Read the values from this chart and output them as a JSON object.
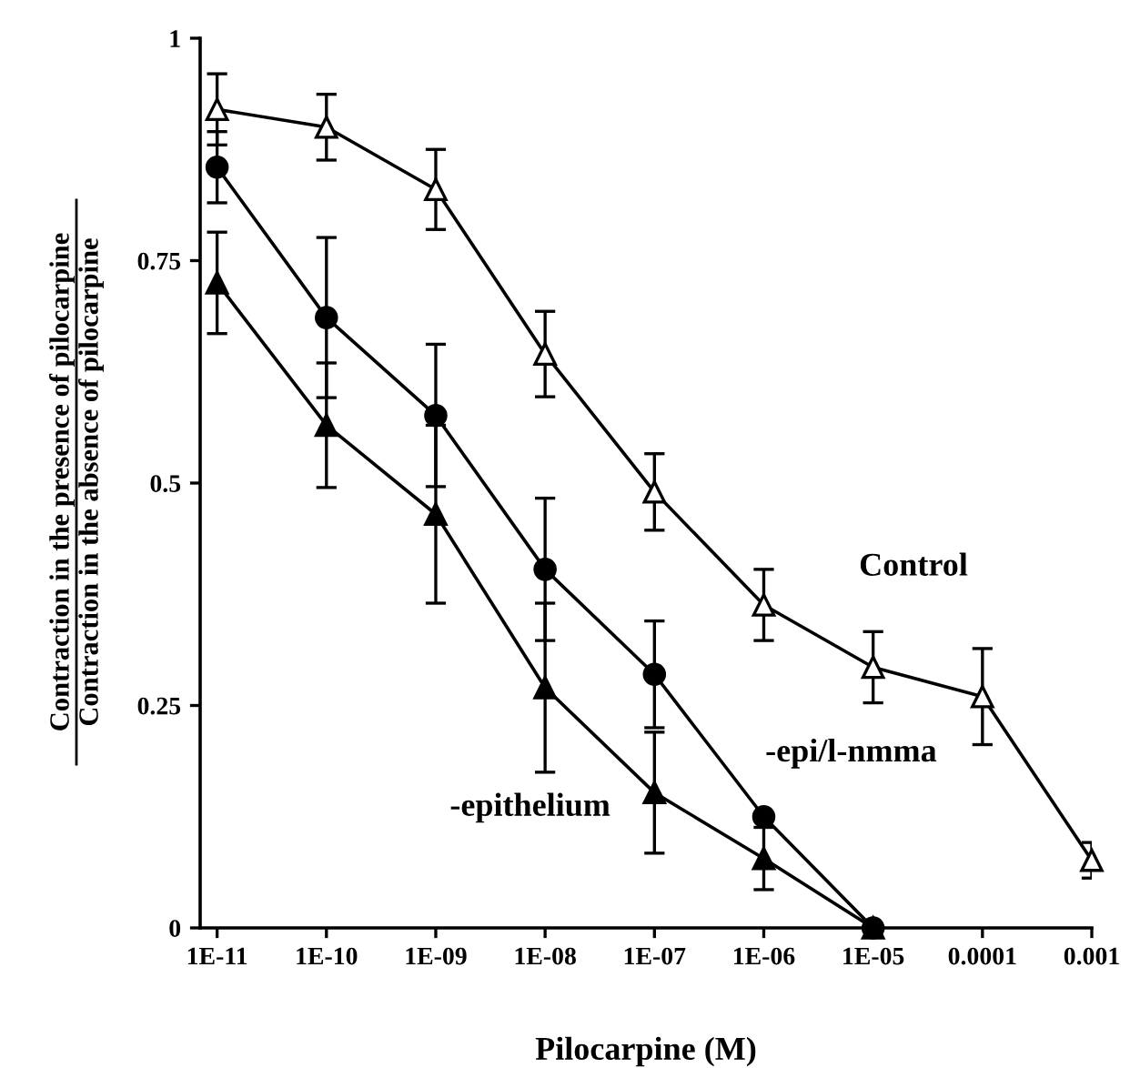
{
  "chart_data": {
    "type": "line",
    "xlabel": "Pilocarpine (M)",
    "ylabel": "Contraction in the presence of pilocarpine\nContraction in the absence of pilocarpine",
    "x": [
      1e-11,
      1e-10,
      1e-09,
      1e-08,
      1e-07,
      1e-06,
      1e-05,
      0.0001,
      0.001
    ],
    "log": "x",
    "xlim": [
      7e-12,
      0.001
    ],
    "xticks": [
      {
        "value": 1e-11,
        "label": "1E-11"
      },
      {
        "value": 1e-10,
        "label": "1E-10"
      },
      {
        "value": 1e-09,
        "label": "1E-09"
      },
      {
        "value": 1e-08,
        "label": "1E-08"
      },
      {
        "value": 1e-07,
        "label": "1E-07"
      },
      {
        "value": 1e-06,
        "label": "1E-06"
      },
      {
        "value": 1e-05,
        "label": "1E-05"
      },
      {
        "value": 0.0001,
        "label": "0.0001"
      },
      {
        "value": 0.001,
        "label": "0.001"
      }
    ],
    "ylim": [
      0,
      1
    ],
    "yticks": [
      0,
      0.25,
      0.5,
      0.75,
      1
    ],
    "grid": false,
    "legend": false,
    "line_style": "solid",
    "series": [
      {
        "name": "Control",
        "color": "#000000",
        "marker": "triangle_open",
        "values": [
          0.92,
          0.9,
          0.83,
          0.645,
          0.49,
          0.363,
          0.293,
          0.26,
          0.076
        ],
        "errors": [
          0.04,
          0.037,
          0.045,
          0.048,
          0.043,
          0.04,
          0.04,
          0.054,
          0.02
        ]
      },
      {
        "name": "-epi/l-nmma",
        "color": "#000000",
        "marker": "circle",
        "values": [
          0.855,
          0.686,
          0.576,
          0.403,
          0.285,
          0.125,
          0,
          null,
          null
        ],
        "errors": [
          0.04,
          0.09,
          0.08,
          0.08,
          0.06,
          null,
          null,
          null,
          null
        ]
      },
      {
        "name": "-epithelium",
        "color": "#000000",
        "marker": "triangle",
        "values": [
          0.725,
          0.565,
          0.465,
          0.27,
          0.152,
          0.078,
          0,
          null,
          null
        ],
        "errors": [
          0.057,
          0.07,
          0.1,
          0.095,
          0.068,
          0.035,
          null,
          null,
          null
        ]
      }
    ]
  }
}
